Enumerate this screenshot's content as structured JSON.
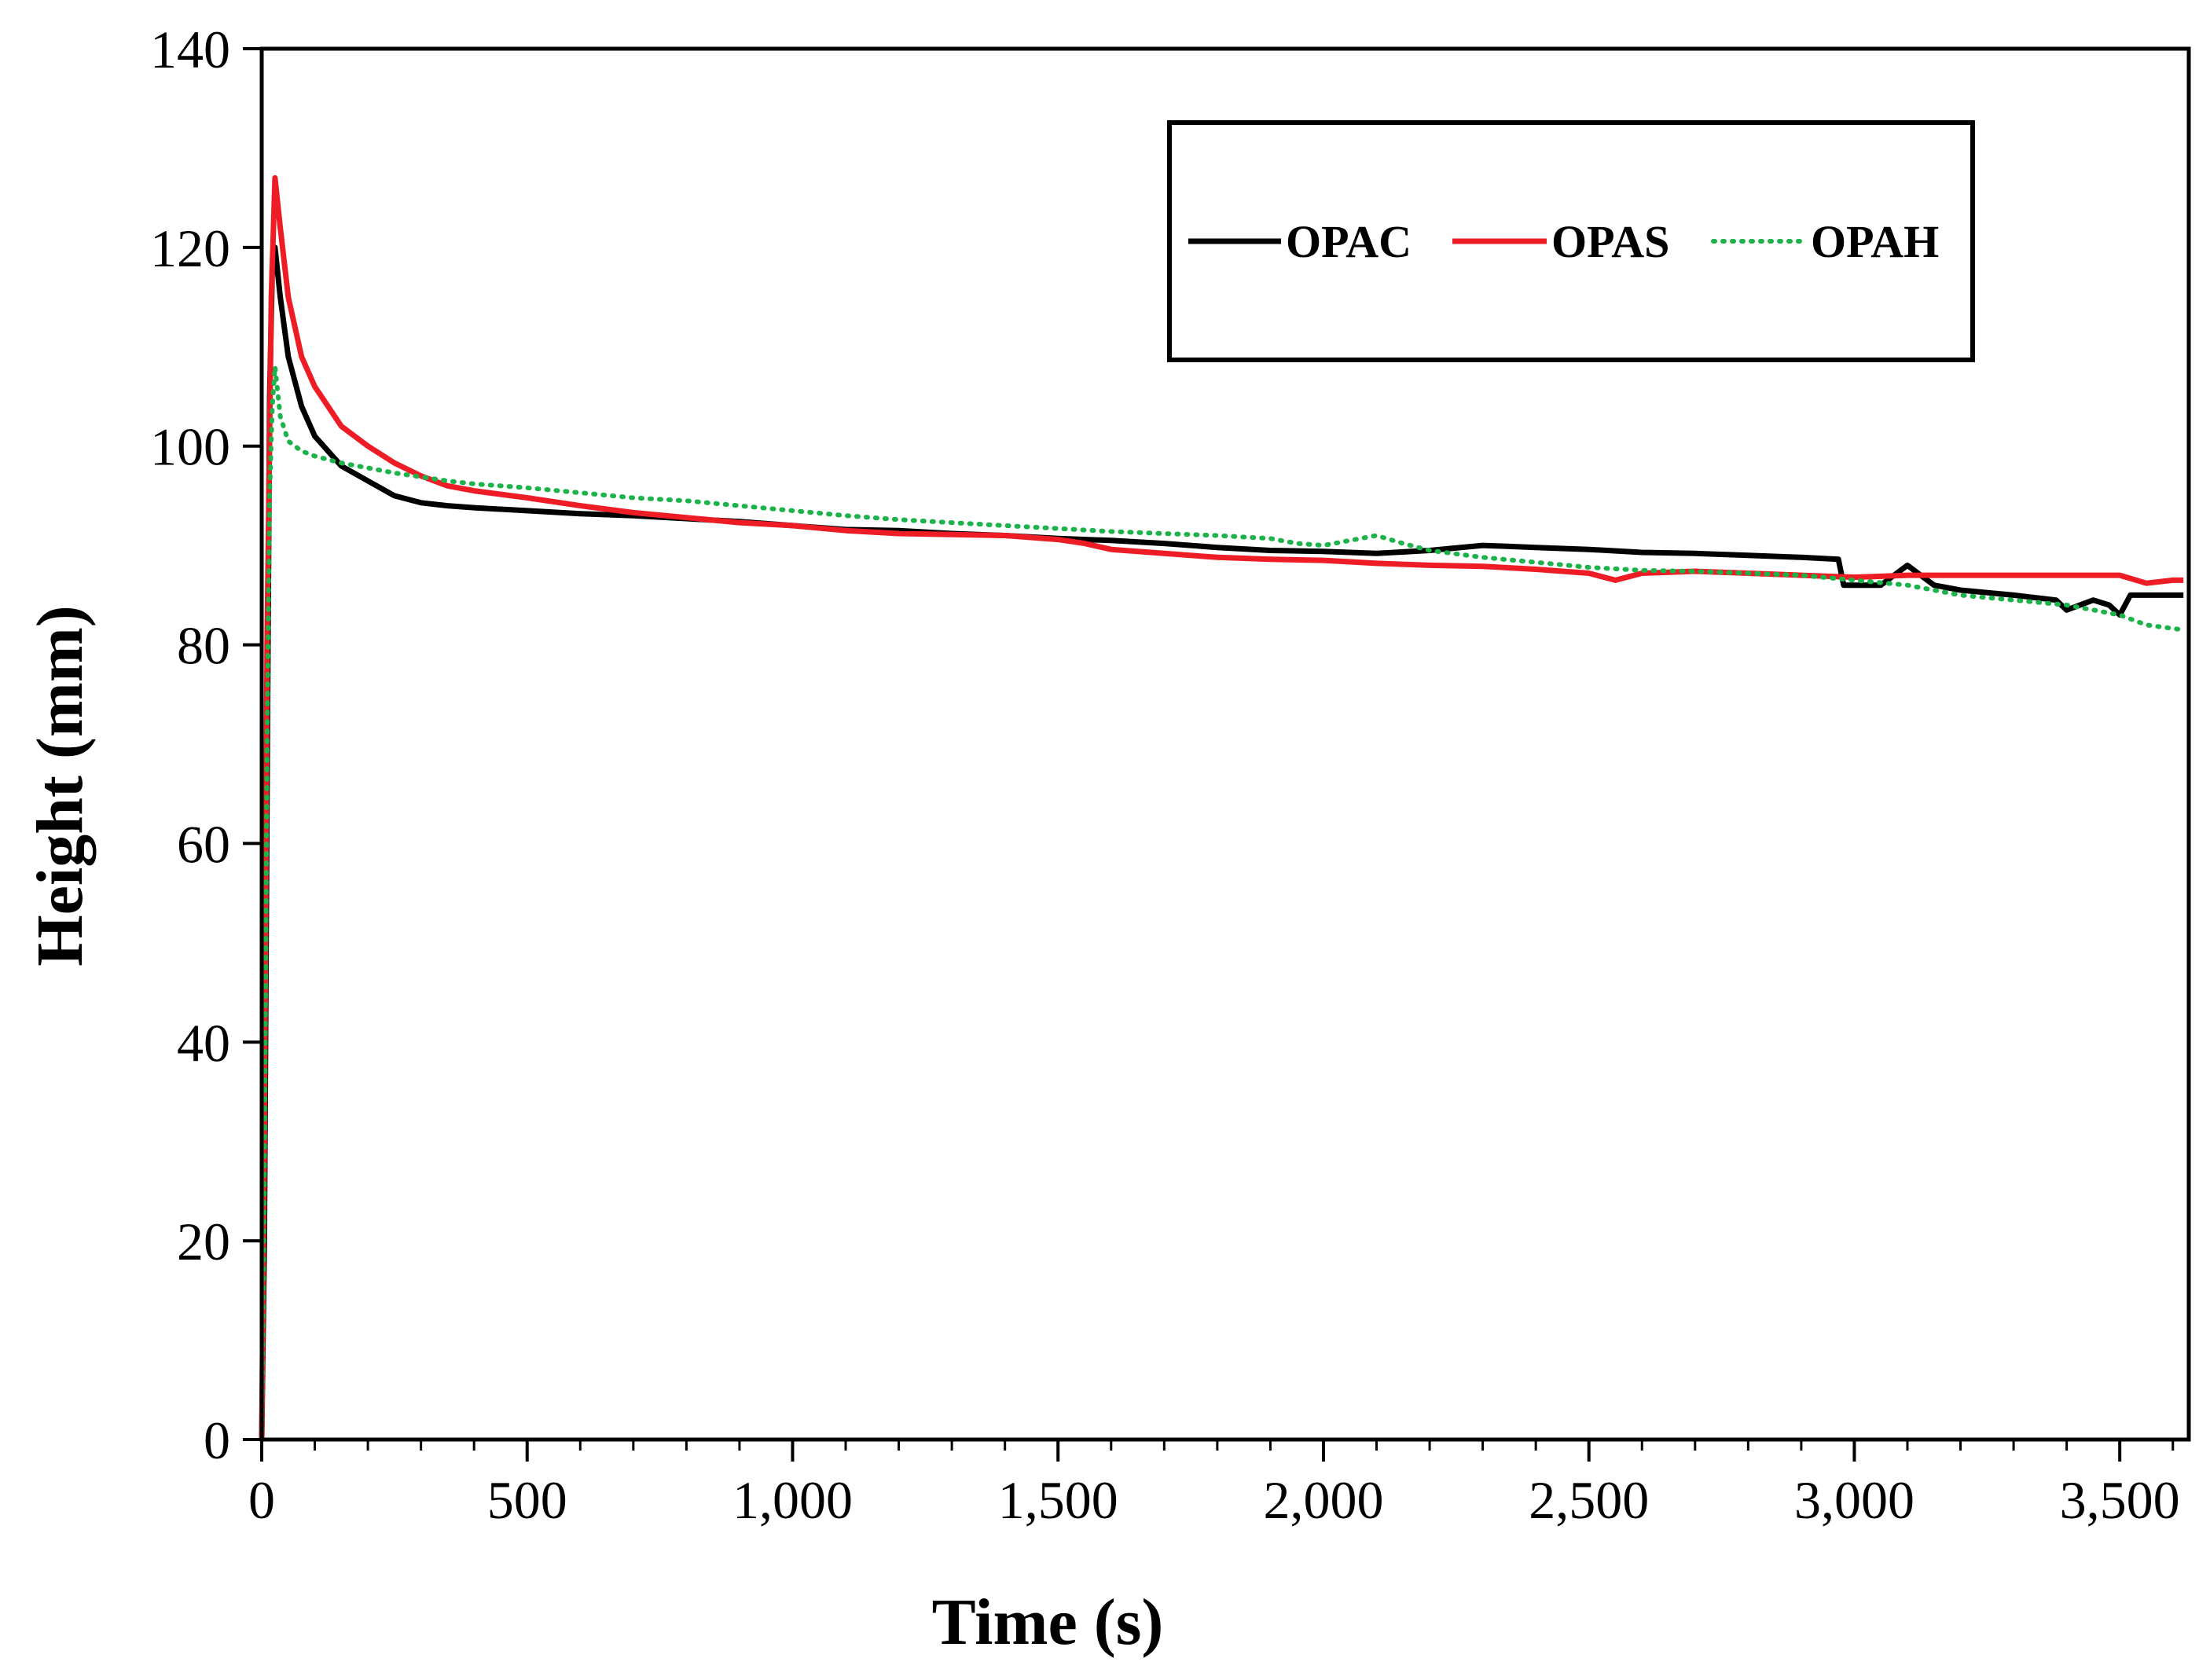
{
  "chart_data": {
    "type": "line",
    "title": "",
    "xlabel": "Time (s)",
    "ylabel": "Height (mm)",
    "xlim": [
      0,
      3630
    ],
    "ylim": [
      0,
      140
    ],
    "x_ticks": [
      0,
      500,
      1000,
      1500,
      2000,
      2500,
      3000,
      3500
    ],
    "x_tick_labels": [
      "0",
      "500",
      "1,000",
      "1,500",
      "2,000",
      "2,500",
      "3,000",
      "3,500"
    ],
    "x_minor_step": 100,
    "y_ticks": [
      0,
      20,
      40,
      60,
      80,
      100,
      120,
      140
    ],
    "y_tick_labels": [
      "0",
      "20",
      "40",
      "60",
      "80",
      "100",
      "120",
      "140"
    ],
    "grid": false,
    "legend_position": "top-right",
    "series": [
      {
        "name": "OPAC",
        "color": "#000000",
        "style": "solid",
        "points": [
          [
            0,
            0
          ],
          [
            5,
            20
          ],
          [
            10,
            65
          ],
          [
            15,
            105
          ],
          [
            20,
            118
          ],
          [
            25,
            120
          ],
          [
            35,
            115
          ],
          [
            50,
            109
          ],
          [
            75,
            104
          ],
          [
            100,
            101
          ],
          [
            150,
            98
          ],
          [
            200,
            96.5
          ],
          [
            250,
            95
          ],
          [
            300,
            94.3
          ],
          [
            350,
            94
          ],
          [
            400,
            93.8
          ],
          [
            500,
            93.5
          ],
          [
            600,
            93.2
          ],
          [
            700,
            93
          ],
          [
            800,
            92.7
          ],
          [
            900,
            92.4
          ],
          [
            1000,
            92
          ],
          [
            1100,
            91.6
          ],
          [
            1200,
            91.5
          ],
          [
            1300,
            91.2
          ],
          [
            1400,
            91
          ],
          [
            1500,
            90.7
          ],
          [
            1600,
            90.5
          ],
          [
            1700,
            90.2
          ],
          [
            1800,
            89.8
          ],
          [
            1900,
            89.5
          ],
          [
            2000,
            89.4
          ],
          [
            2100,
            89.2
          ],
          [
            2200,
            89.5
          ],
          [
            2300,
            90
          ],
          [
            2400,
            89.8
          ],
          [
            2500,
            89.6
          ],
          [
            2600,
            89.3
          ],
          [
            2700,
            89.2
          ],
          [
            2800,
            89
          ],
          [
            2900,
            88.8
          ],
          [
            2970,
            88.6
          ],
          [
            2980,
            86
          ],
          [
            3050,
            86
          ],
          [
            3100,
            88
          ],
          [
            3150,
            86
          ],
          [
            3200,
            85.5
          ],
          [
            3300,
            85
          ],
          [
            3380,
            84.5
          ],
          [
            3400,
            83.5
          ],
          [
            3450,
            84.5
          ],
          [
            3480,
            84
          ],
          [
            3500,
            83
          ],
          [
            3520,
            85
          ],
          [
            3600,
            85
          ],
          [
            3620,
            85
          ]
        ]
      },
      {
        "name": "OPAS",
        "color": "#ee1c25",
        "style": "solid",
        "points": [
          [
            0,
            0
          ],
          [
            5,
            30
          ],
          [
            10,
            80
          ],
          [
            18,
            115
          ],
          [
            25,
            127
          ],
          [
            35,
            122
          ],
          [
            50,
            115
          ],
          [
            75,
            109
          ],
          [
            100,
            106
          ],
          [
            150,
            102
          ],
          [
            200,
            100
          ],
          [
            250,
            98.3
          ],
          [
            300,
            97
          ],
          [
            350,
            96
          ],
          [
            400,
            95.5
          ],
          [
            500,
            94.8
          ],
          [
            600,
            94
          ],
          [
            700,
            93.3
          ],
          [
            800,
            92.8
          ],
          [
            900,
            92.3
          ],
          [
            1000,
            92
          ],
          [
            1100,
            91.5
          ],
          [
            1200,
            91.2
          ],
          [
            1300,
            91.1
          ],
          [
            1400,
            91
          ],
          [
            1500,
            90.6
          ],
          [
            1550,
            90.2
          ],
          [
            1600,
            89.6
          ],
          [
            1700,
            89.2
          ],
          [
            1800,
            88.8
          ],
          [
            1900,
            88.6
          ],
          [
            2000,
            88.5
          ],
          [
            2100,
            88.2
          ],
          [
            2200,
            88
          ],
          [
            2300,
            87.9
          ],
          [
            2400,
            87.6
          ],
          [
            2500,
            87.2
          ],
          [
            2550,
            86.5
          ],
          [
            2600,
            87.2
          ],
          [
            2700,
            87.4
          ],
          [
            2800,
            87.2
          ],
          [
            2900,
            87
          ],
          [
            3000,
            86.8
          ],
          [
            3100,
            87
          ],
          [
            3200,
            87
          ],
          [
            3300,
            87
          ],
          [
            3400,
            87
          ],
          [
            3500,
            87
          ],
          [
            3550,
            86.2
          ],
          [
            3600,
            86.5
          ],
          [
            3620,
            86.5
          ]
        ]
      },
      {
        "name": "OPAH",
        "color": "#1db34b",
        "style": "dotted",
        "points": [
          [
            0,
            0
          ],
          [
            5,
            25
          ],
          [
            10,
            70
          ],
          [
            15,
            95
          ],
          [
            20,
            104
          ],
          [
            25,
            108
          ],
          [
            35,
            103
          ],
          [
            50,
            100.5
          ],
          [
            75,
            99.5
          ],
          [
            100,
            99
          ],
          [
            150,
            98.3
          ],
          [
            200,
            97.8
          ],
          [
            250,
            97.3
          ],
          [
            300,
            96.9
          ],
          [
            350,
            96.5
          ],
          [
            400,
            96.2
          ],
          [
            500,
            95.8
          ],
          [
            600,
            95.3
          ],
          [
            700,
            94.8
          ],
          [
            800,
            94.5
          ],
          [
            900,
            94
          ],
          [
            1000,
            93.5
          ],
          [
            1100,
            93
          ],
          [
            1200,
            92.6
          ],
          [
            1300,
            92.3
          ],
          [
            1400,
            92
          ],
          [
            1500,
            91.7
          ],
          [
            1600,
            91.4
          ],
          [
            1700,
            91.2
          ],
          [
            1800,
            91
          ],
          [
            1900,
            90.7
          ],
          [
            1950,
            90.2
          ],
          [
            2000,
            90
          ],
          [
            2050,
            90.5
          ],
          [
            2100,
            91
          ],
          [
            2150,
            90.2
          ],
          [
            2200,
            89.5
          ],
          [
            2300,
            88.8
          ],
          [
            2400,
            88.3
          ],
          [
            2500,
            87.8
          ],
          [
            2600,
            87.5
          ],
          [
            2700,
            87.4
          ],
          [
            2800,
            87.2
          ],
          [
            2900,
            87
          ],
          [
            3000,
            86.5
          ],
          [
            3100,
            86
          ],
          [
            3200,
            85
          ],
          [
            3300,
            84.5
          ],
          [
            3400,
            84
          ],
          [
            3450,
            83.5
          ],
          [
            3500,
            83
          ],
          [
            3550,
            82
          ],
          [
            3620,
            81.5
          ]
        ]
      }
    ]
  }
}
